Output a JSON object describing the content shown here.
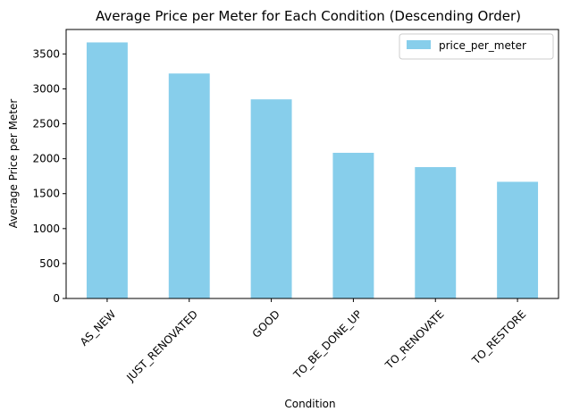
{
  "chart_data": {
    "type": "bar",
    "title": "Average Price per Meter for Each Condition (Descending Order)",
    "xlabel": "Condition",
    "ylabel": "Average Price per Meter",
    "categories": [
      "AS_NEW",
      "JUST_RENOVATED",
      "GOOD",
      "TO_BE_DONE_UP",
      "TO_RENOVATE",
      "TO_RESTORE"
    ],
    "series": [
      {
        "name": "price_per_meter",
        "values": [
          3665,
          3220,
          2850,
          2085,
          1880,
          1670
        ],
        "color": "#87ceeb"
      }
    ],
    "ylim": [
      0,
      3850
    ],
    "yticks": [
      0,
      500,
      1000,
      1500,
      2000,
      2500,
      3000,
      3500
    ],
    "grid": false,
    "legend_position": "top-right"
  }
}
